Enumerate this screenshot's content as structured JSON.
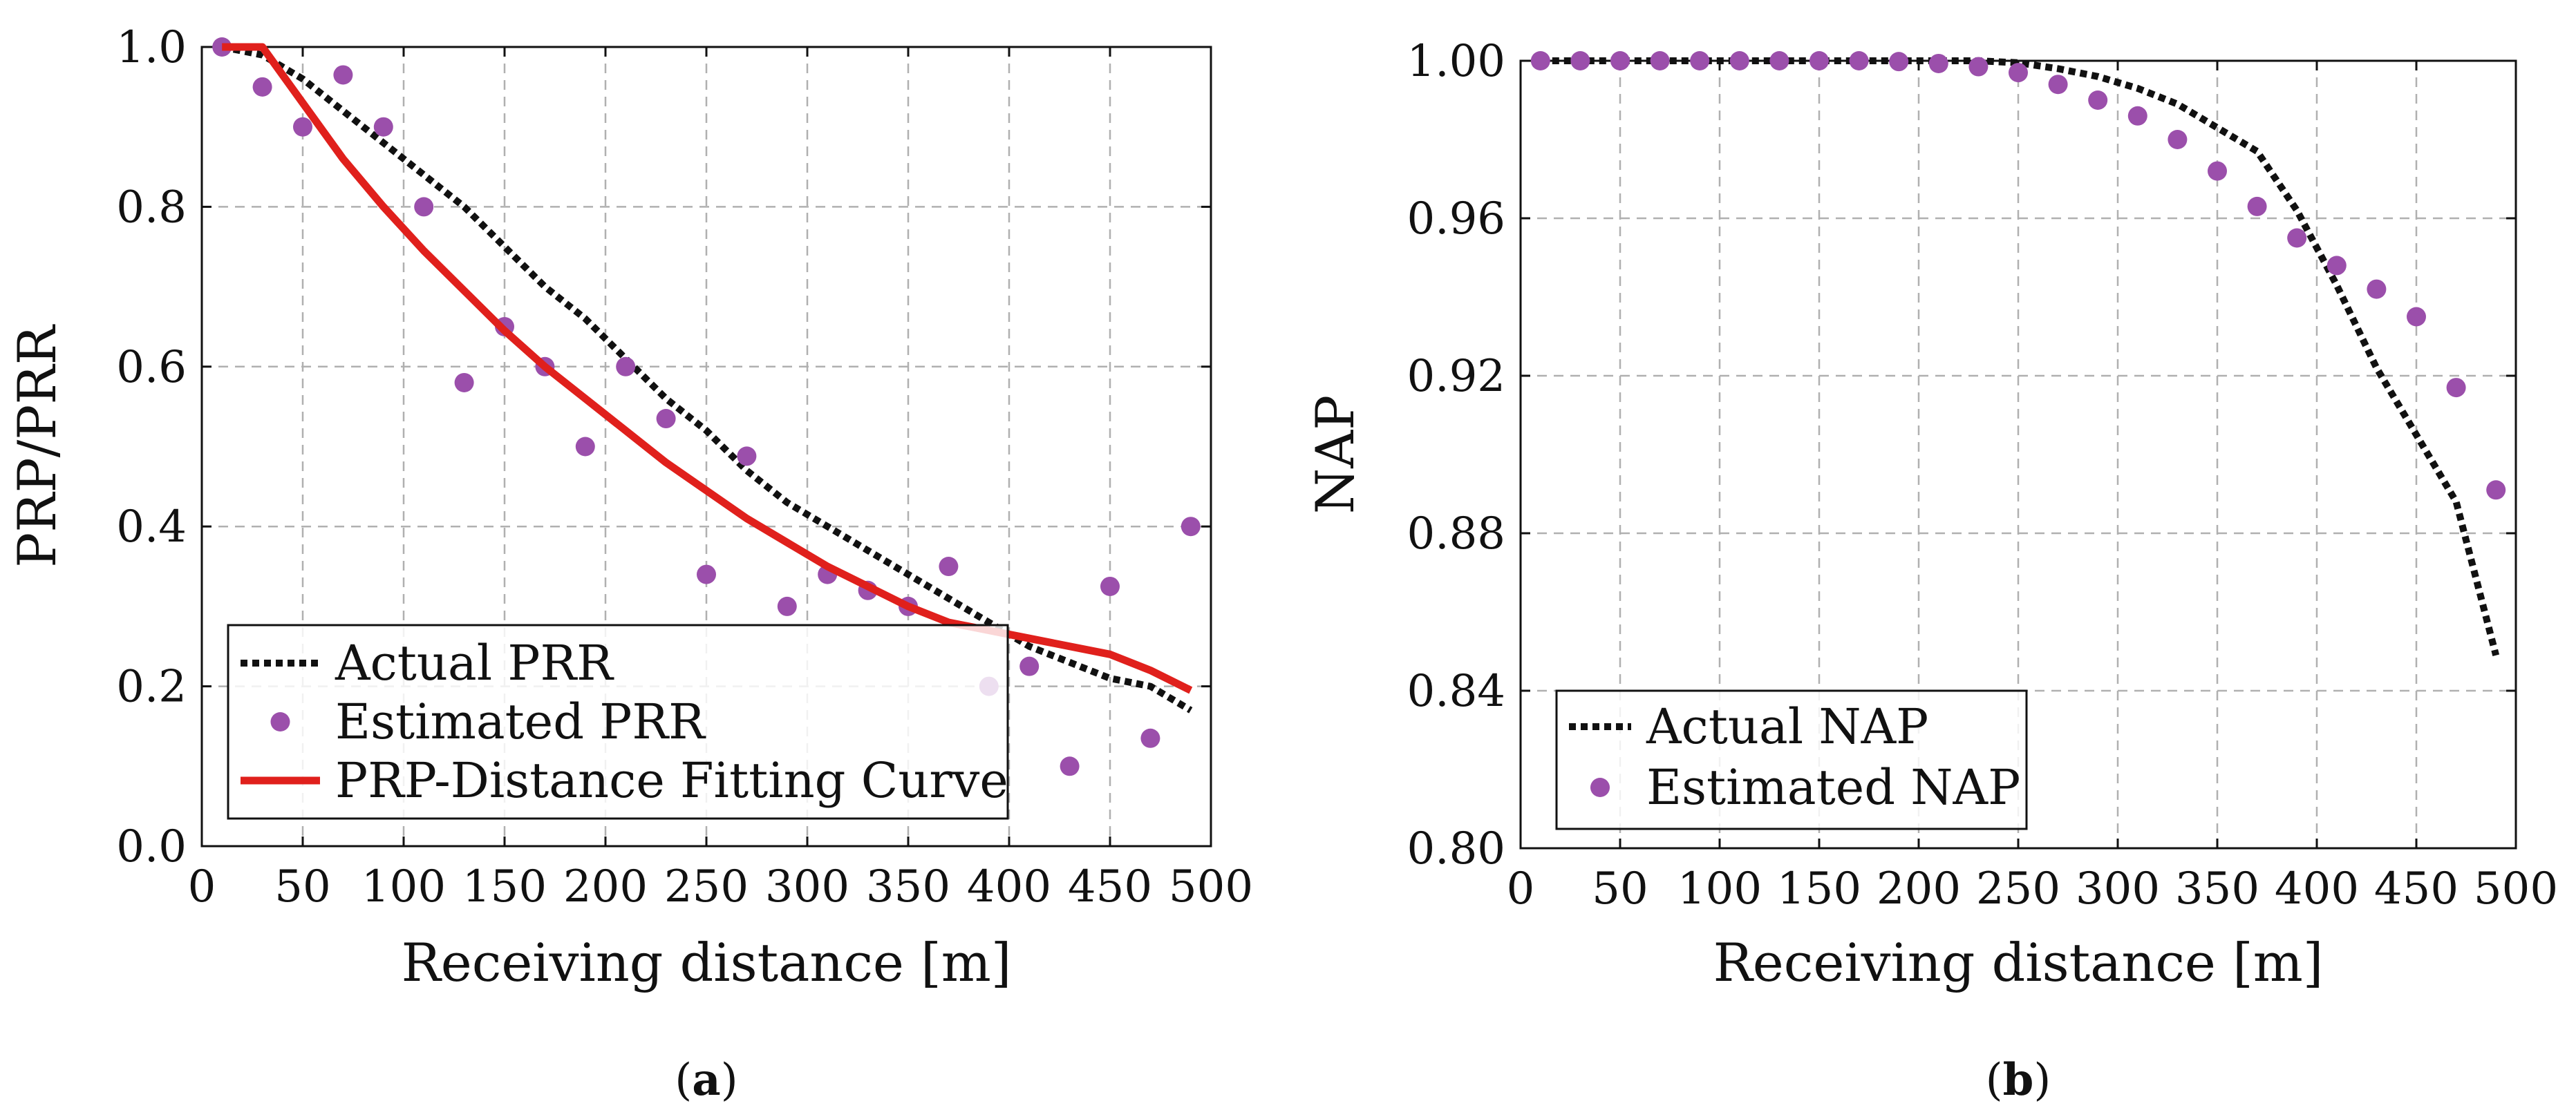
{
  "chart_data": [
    {
      "type": "line",
      "panel": "a",
      "caption": "(a)",
      "caption_letter": "a",
      "xlabel": "Receiving distance [m]",
      "ylabel": "PRP/PRR",
      "xlim": [
        0,
        500
      ],
      "ylim": [
        0,
        1.0
      ],
      "xticks": [
        0,
        50,
        100,
        150,
        200,
        250,
        300,
        350,
        400,
        450,
        500
      ],
      "yticks": [
        0.0,
        0.2,
        0.4,
        0.6,
        0.8,
        1.0
      ],
      "ytick_labels": [
        "0.0",
        "0.2",
        "0.4",
        "0.6",
        "0.8",
        "1.0"
      ],
      "grid": true,
      "legend_position": "bottom-left",
      "series": [
        {
          "name": "Actual PRR",
          "style": "dotted",
          "color": "#111111",
          "x": [
            10,
            30,
            50,
            70,
            90,
            110,
            130,
            150,
            170,
            190,
            210,
            230,
            250,
            270,
            290,
            310,
            330,
            350,
            370,
            390,
            410,
            430,
            450,
            470,
            490
          ],
          "y": [
            1.0,
            0.99,
            0.96,
            0.92,
            0.88,
            0.84,
            0.8,
            0.75,
            0.7,
            0.66,
            0.61,
            0.56,
            0.52,
            0.47,
            0.43,
            0.4,
            0.37,
            0.34,
            0.31,
            0.28,
            0.25,
            0.23,
            0.21,
            0.2,
            0.17
          ]
        },
        {
          "name": "Estimated PRR",
          "style": "markers",
          "color": "#9b4fab",
          "x": [
            10,
            30,
            50,
            70,
            90,
            110,
            130,
            150,
            170,
            190,
            210,
            230,
            250,
            270,
            290,
            310,
            330,
            350,
            370,
            390,
            410,
            430,
            450,
            470,
            490
          ],
          "y": [
            1.0,
            0.95,
            0.9,
            0.965,
            0.9,
            0.8,
            0.58,
            0.65,
            0.6,
            0.5,
            0.6,
            0.535,
            0.34,
            0.488,
            0.3,
            0.34,
            0.32,
            0.3,
            0.35,
            0.2,
            0.225,
            0.1,
            0.325,
            0.135,
            0.4
          ]
        },
        {
          "name": "PRP-Distance Fitting Curve",
          "style": "solid",
          "color": "#e0201c",
          "x": [
            10,
            30,
            50,
            70,
            90,
            110,
            130,
            150,
            170,
            190,
            210,
            230,
            250,
            270,
            290,
            310,
            330,
            350,
            370,
            390,
            410,
            430,
            450,
            470,
            490
          ],
          "y": [
            1.0,
            1.0,
            0.93,
            0.86,
            0.8,
            0.745,
            0.695,
            0.645,
            0.6,
            0.56,
            0.52,
            0.48,
            0.445,
            0.41,
            0.38,
            0.35,
            0.325,
            0.3,
            0.28,
            0.27,
            0.26,
            0.25,
            0.24,
            0.22,
            0.195
          ]
        }
      ]
    },
    {
      "type": "line",
      "panel": "b",
      "caption": "(b)",
      "caption_letter": "b",
      "xlabel": "Receiving distance [m]",
      "ylabel": "NAP",
      "xlim": [
        0,
        500
      ],
      "ylim": [
        0.8,
        1.0
      ],
      "xticks": [
        0,
        50,
        100,
        150,
        200,
        250,
        300,
        350,
        400,
        450,
        500
      ],
      "yticks": [
        0.8,
        0.84,
        0.88,
        0.92,
        0.96,
        1.0
      ],
      "ytick_labels": [
        "0.80",
        "0.84",
        "0.88",
        "0.92",
        "0.96",
        "1.00"
      ],
      "grid": true,
      "legend_position": "bottom-left",
      "series": [
        {
          "name": "Actual NAP",
          "style": "dotted",
          "color": "#111111",
          "x": [
            10,
            30,
            50,
            70,
            90,
            110,
            130,
            150,
            170,
            190,
            210,
            230,
            250,
            270,
            290,
            310,
            330,
            350,
            370,
            390,
            410,
            430,
            450,
            470,
            490
          ],
          "y": [
            1.0,
            1.0,
            1.0,
            1.0,
            1.0,
            1.0,
            1.0,
            1.0,
            1.0,
            1.0,
            1.0,
            1.0,
            0.9995,
            0.998,
            0.996,
            0.993,
            0.989,
            0.983,
            0.977,
            0.962,
            0.943,
            0.922,
            0.905,
            0.888,
            0.849
          ]
        },
        {
          "name": "Estimated NAP",
          "style": "markers",
          "color": "#9b4fab",
          "x": [
            10,
            30,
            50,
            70,
            90,
            110,
            130,
            150,
            170,
            190,
            210,
            230,
            250,
            270,
            290,
            310,
            330,
            350,
            370,
            390,
            410,
            430,
            450,
            470,
            490
          ],
          "y": [
            1.0,
            1.0,
            1.0,
            1.0,
            1.0,
            1.0,
            1.0,
            1.0,
            1.0,
            0.9998,
            0.9993,
            0.9985,
            0.997,
            0.994,
            0.99,
            0.986,
            0.98,
            0.972,
            0.963,
            0.955,
            0.948,
            0.942,
            0.935,
            0.917,
            0.891
          ]
        }
      ]
    }
  ]
}
